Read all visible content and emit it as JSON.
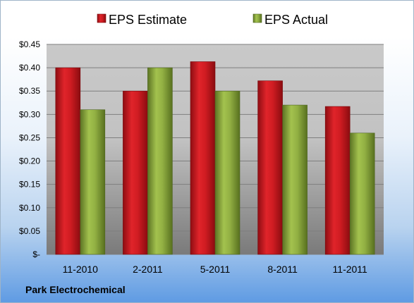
{
  "company_label": "Park Electrochemical",
  "chart_data": {
    "type": "bar",
    "categories": [
      "11-2010",
      "2-2011",
      "5-2011",
      "8-2011",
      "11-2011"
    ],
    "series": [
      {
        "name": "EPS Estimate",
        "color": "#c8161d",
        "values": [
          0.4,
          0.35,
          0.413,
          0.372,
          0.317
        ]
      },
      {
        "name": "EPS Actual",
        "color": "#8aa83c",
        "values": [
          0.31,
          0.4,
          0.35,
          0.32,
          0.26
        ]
      }
    ],
    "y_ticks": [
      {
        "value": 0,
        "label": "$-"
      },
      {
        "value": 0.05,
        "label": "$0.05"
      },
      {
        "value": 0.1,
        "label": "$0.10"
      },
      {
        "value": 0.15,
        "label": "$0.15"
      },
      {
        "value": 0.2,
        "label": "$0.20"
      },
      {
        "value": 0.25,
        "label": "$0.25"
      },
      {
        "value": 0.3,
        "label": "$0.30"
      },
      {
        "value": 0.35,
        "label": "$0.35"
      },
      {
        "value": 0.4,
        "label": "$0.40"
      },
      {
        "value": 0.45,
        "label": "$0.45"
      }
    ],
    "ylim": [
      0,
      0.45
    ],
    "grid": true,
    "legend_position": "top"
  }
}
